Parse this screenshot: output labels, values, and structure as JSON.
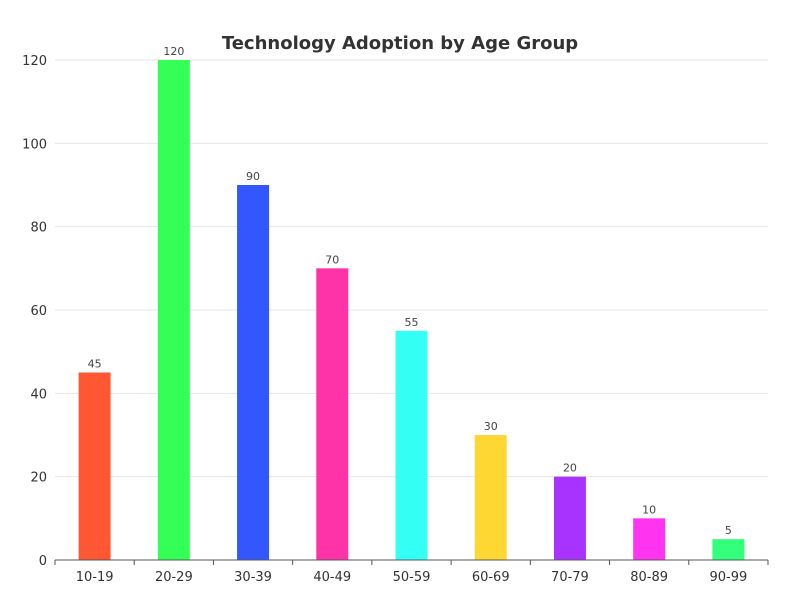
{
  "chart_data": {
    "type": "bar",
    "title": "Technology Adoption by Age Group",
    "xlabel": "",
    "ylabel": "",
    "categories": [
      "10-19",
      "20-29",
      "30-39",
      "40-49",
      "50-59",
      "60-69",
      "70-79",
      "80-89",
      "90-99"
    ],
    "values": [
      45,
      120,
      90,
      70,
      55,
      30,
      20,
      10,
      5
    ],
    "colors": [
      "#FF5733",
      "#33FF57",
      "#3357FF",
      "#FF33A8",
      "#33FFF5",
      "#FFD733",
      "#A833FF",
      "#FF33F0",
      "#33FF7A"
    ],
    "ylim": [
      0,
      120
    ],
    "yticks": [
      0,
      20,
      40,
      60,
      80,
      100,
      120
    ],
    "grid": true,
    "legend": "none",
    "data_labels": true
  }
}
